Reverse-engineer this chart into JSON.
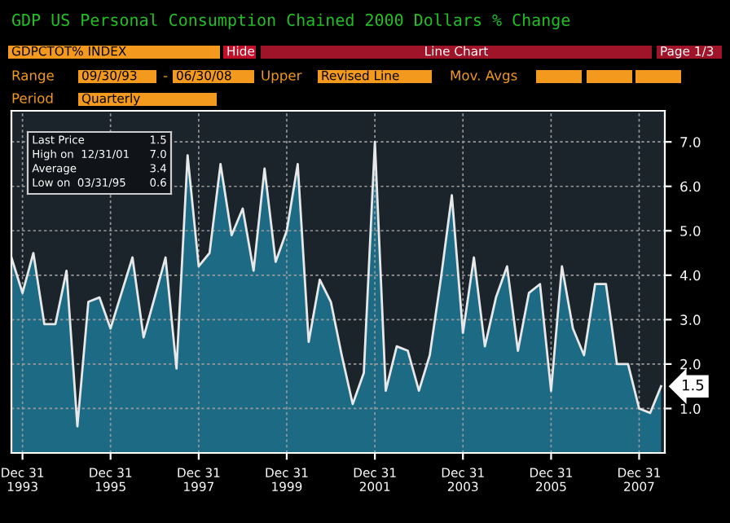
{
  "chart_data": {
    "type": "area",
    "title": "GDP US Personal Consumption Chained 2000 Dollars % Change",
    "annotations": [
      "GDPCTOT% INDEX",
      "Hide",
      "Line Chart",
      "Page 1/3",
      "Range",
      "09/30/93",
      "-",
      "06/30/08",
      "Upper",
      "Revised Line",
      "Mov. Avgs",
      "Period",
      "Quarterly",
      "Last Price",
      "1.5",
      "High on  12/31/01",
      "7.0",
      "Average",
      "3.4",
      "Low on  03/31/95",
      "0.6",
      {
        "text": "1.5",
        "x": "2008-06-30",
        "y": 1.5
      }
    ],
    "x": [
      "1993-09-30",
      "1993-12-31",
      "1994-03-31",
      "1994-06-30",
      "1994-09-30",
      "1994-12-31",
      "1995-03-31",
      "1995-06-30",
      "1995-09-30",
      "1995-12-31",
      "1996-03-31",
      "1996-06-30",
      "1996-09-30",
      "1996-12-31",
      "1997-03-31",
      "1997-06-30",
      "1997-09-30",
      "1997-12-31",
      "1998-03-31",
      "1998-06-30",
      "1998-09-30",
      "1998-12-31",
      "1999-03-31",
      "1999-06-30",
      "1999-09-30",
      "1999-12-31",
      "2000-03-31",
      "2000-06-30",
      "2000-09-30",
      "2000-12-31",
      "2001-03-31",
      "2001-06-30",
      "2001-09-30",
      "2001-12-31",
      "2002-03-31",
      "2002-06-30",
      "2002-09-30",
      "2002-12-31",
      "2003-03-31",
      "2003-06-30",
      "2003-09-30",
      "2003-12-31",
      "2004-03-31",
      "2004-06-30",
      "2004-09-30",
      "2004-12-31",
      "2005-03-31",
      "2005-06-30",
      "2005-09-30",
      "2005-12-31",
      "2006-03-31",
      "2006-06-30",
      "2006-09-30",
      "2006-12-31",
      "2007-03-31",
      "2007-06-30",
      "2007-09-30",
      "2007-12-31",
      "2008-03-31",
      "2008-06-30"
    ],
    "series": [
      {
        "color": "#1d6a85",
        "values": [
          4.4,
          3.6,
          4.5,
          2.9,
          2.9,
          4.1,
          0.6,
          3.4,
          3.5,
          2.8,
          3.6,
          4.4,
          2.6,
          3.5,
          4.4,
          1.9,
          6.7,
          4.2,
          4.5,
          6.5,
          4.9,
          5.5,
          4.1,
          6.4,
          4.3,
          5.0,
          6.5,
          2.5,
          3.9,
          3.4,
          2.2,
          1.1,
          1.8,
          7.0,
          1.4,
          2.4,
          2.3,
          1.4,
          2.2,
          3.9,
          5.8,
          2.7,
          4.4,
          2.4,
          3.5,
          4.2,
          2.3,
          3.6,
          3.8,
          1.4,
          4.2,
          2.8,
          2.2,
          3.8,
          3.8,
          2.0,
          2.0,
          1.0,
          0.9,
          1.5
        ]
      }
    ],
    "xlim": [
      "1993-09-30",
      "2008-07-31"
    ],
    "xticks": [
      {
        "value": "1993-12-31",
        "label": "Dec 31\n1993"
      },
      {
        "value": "1995-12-31",
        "label": "Dec 31\n1995"
      },
      {
        "value": "1997-12-31",
        "label": "Dec 31\n1997"
      },
      {
        "value": "1999-12-31",
        "label": "Dec 31\n1999"
      },
      {
        "value": "2001-12-31",
        "label": "Dec 31\n2001"
      },
      {
        "value": "2003-12-31",
        "label": "Dec 31\n2003"
      },
      {
        "value": "2005-12-31",
        "label": "Dec 31\n2005"
      },
      {
        "value": "2007-12-31",
        "label": "Dec 31\n2007"
      }
    ],
    "ylim": [
      0,
      7.7
    ],
    "yticks": [
      {
        "value": 1,
        "label": "1.0"
      },
      {
        "value": 2,
        "label": "2.0"
      },
      {
        "value": 3,
        "label": "3.0"
      },
      {
        "value": 4,
        "label": "4.0"
      },
      {
        "value": 5,
        "label": "5.0"
      },
      {
        "value": 6,
        "label": "6.0"
      },
      {
        "value": 7,
        "label": "7.0"
      }
    ],
    "grid": true,
    "line_style": "solid",
    "legend": false
  }
}
